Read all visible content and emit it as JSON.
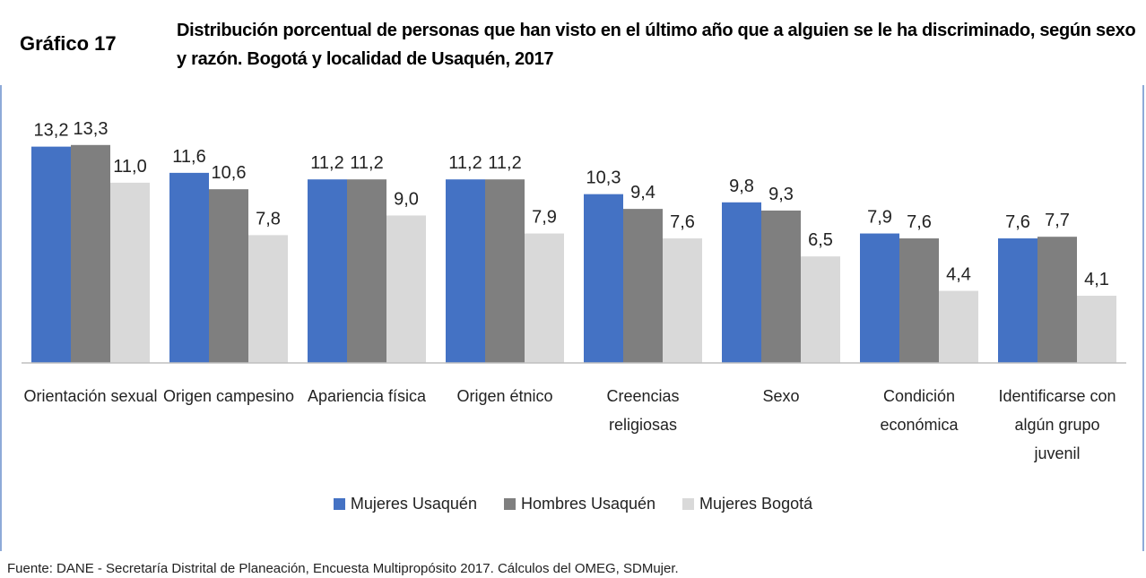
{
  "chart_data": {
    "type": "bar",
    "label": "Gráfico 17",
    "title": "Distribución porcentual de personas que han visto en el último año que a alguien se le ha discriminado, según sexo y razón. Bogotá y localidad de Usaquén, 2017",
    "categories": [
      "Orientación sexual",
      "Origen campesino",
      "Apariencia física",
      "Origen étnico",
      "Creencias religiosas",
      "Sexo",
      "Condición económica",
      "Identificarse con algún grupo juvenil"
    ],
    "series": [
      {
        "name": "Mujeres Usaquén",
        "color": "#4472c4",
        "values": [
          13.2,
          11.6,
          11.2,
          11.2,
          10.3,
          9.8,
          7.9,
          7.6
        ],
        "value_labels": [
          "13,2",
          "11,6",
          "11,2",
          "11,2",
          "10,3",
          "9,8",
          "7,9",
          "7,6"
        ]
      },
      {
        "name": "Hombres Usaquén",
        "color": "#7f7f7f",
        "values": [
          13.3,
          10.6,
          11.2,
          11.2,
          9.4,
          9.3,
          7.6,
          7.7
        ],
        "value_labels": [
          "13,3",
          "10,6",
          "11,2",
          "11,2",
          "9,4",
          "9,3",
          "7,6",
          "7,7"
        ]
      },
      {
        "name": "Mujeres Bogotá",
        "color": "#d9d9d9",
        "values": [
          11.0,
          7.8,
          9.0,
          7.9,
          7.6,
          6.5,
          4.4,
          4.1
        ],
        "value_labels": [
          "11,0",
          "7,8",
          "9,0",
          "7,9",
          "7,6",
          "6,5",
          "4,4",
          "4,1"
        ]
      }
    ],
    "ylim": [
      0,
      14
    ],
    "legend": "bottom",
    "source": "Fuente: DANE - Secretaría Distrital de Planeación, Encuesta Multipropósito 2017. Cálculos del OMEG, SDMujer."
  }
}
